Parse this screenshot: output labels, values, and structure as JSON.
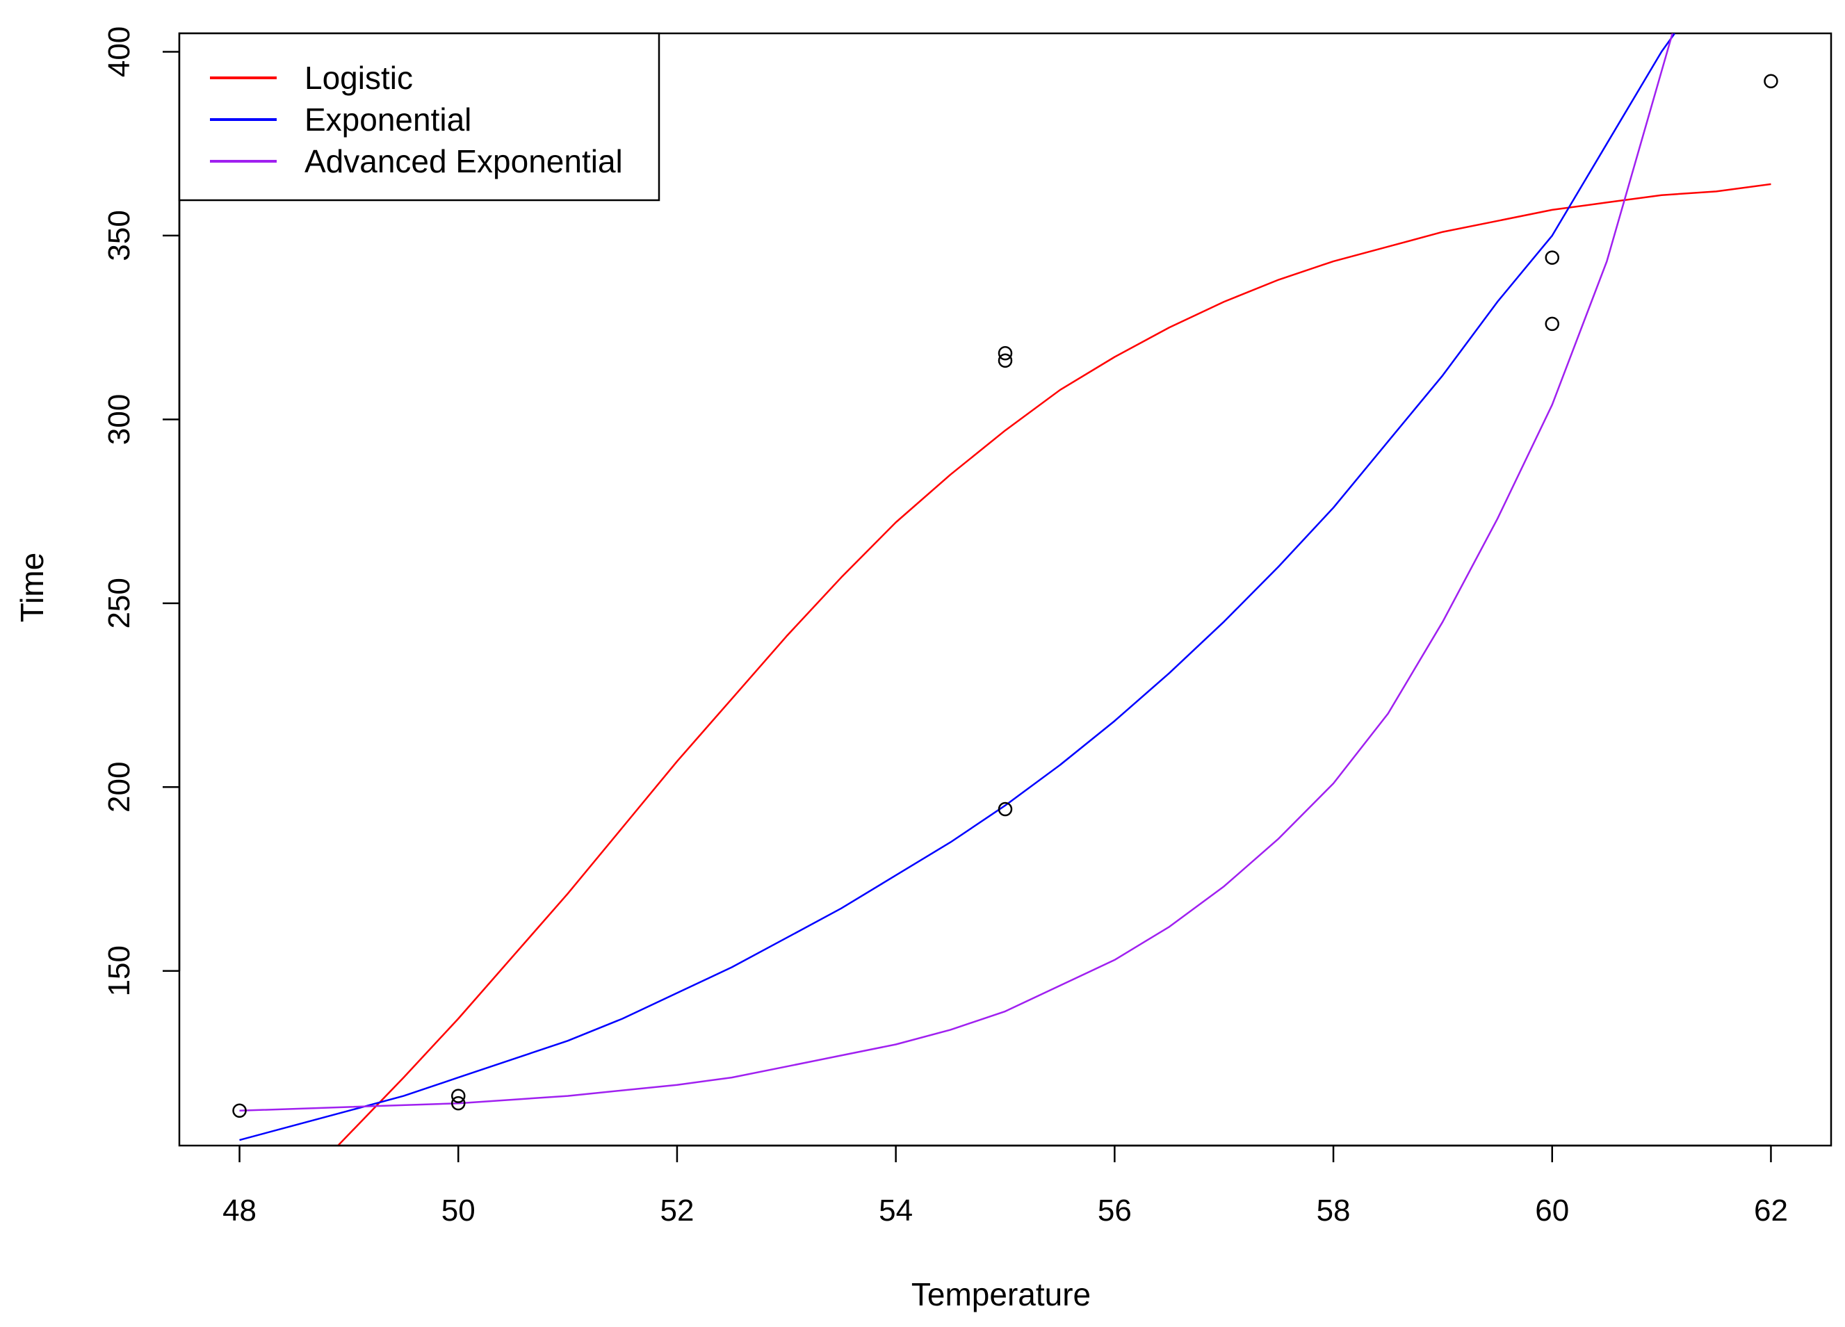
{
  "chart_data": {
    "type": "scatter",
    "title": "",
    "xlabel": "Temperature",
    "ylabel": "Time",
    "xlim": [
      47.45,
      62.55
    ],
    "ylim": [
      102.5,
      405
    ],
    "x_ticks": [
      48,
      50,
      52,
      54,
      56,
      58,
      60,
      62
    ],
    "y_ticks": [
      150,
      200,
      250,
      300,
      350,
      400
    ],
    "grid": false,
    "legend": {
      "placement": "top-left"
    },
    "points": [
      {
        "x": 48,
        "y": 112
      },
      {
        "x": 50,
        "y": 114
      },
      {
        "x": 50,
        "y": 116
      },
      {
        "x": 55,
        "y": 194
      },
      {
        "x": 55,
        "y": 316
      },
      {
        "x": 55,
        "y": 318
      },
      {
        "x": 60,
        "y": 326
      },
      {
        "x": 60,
        "y": 344
      },
      {
        "x": 62,
        "y": 392
      }
    ],
    "series": [
      {
        "name": "Logistic",
        "color": "#ff0000",
        "x": [
          48.9,
          49.5,
          50,
          50.5,
          51,
          51.5,
          52,
          52.5,
          53,
          53.5,
          54,
          54.5,
          55,
          55.5,
          56,
          56.5,
          57,
          57.5,
          58,
          58.5,
          59,
          59.5,
          60,
          60.5,
          61,
          61.5,
          62
        ],
        "y": [
          102.5,
          121,
          137,
          154,
          171,
          189,
          207,
          224,
          241,
          257,
          272,
          285,
          297,
          308,
          317,
          325,
          332,
          338,
          343,
          347,
          351,
          354,
          357,
          359,
          361,
          362,
          364
        ]
      },
      {
        "name": "Exponential",
        "color": "#0000ff",
        "x": [
          48,
          48.5,
          49,
          49.5,
          50,
          50.5,
          51,
          51.5,
          52,
          52.5,
          53,
          53.5,
          54,
          54.5,
          55,
          55.5,
          56,
          56.5,
          57,
          57.5,
          58,
          58.5,
          59,
          59.5,
          60,
          60.5,
          61,
          61.12
        ],
        "y": [
          104,
          108,
          112,
          116,
          121,
          126,
          131,
          137,
          144,
          151,
          159,
          167,
          176,
          185,
          195,
          206,
          218,
          231,
          245,
          260,
          276,
          294,
          312,
          332,
          350,
          375,
          400,
          405
        ]
      },
      {
        "name": "Advanced Exponential",
        "color": "#a020f0",
        "x": [
          48,
          49,
          50,
          51,
          52,
          52.5,
          53,
          53.5,
          54,
          54.5,
          55,
          55.5,
          56,
          56.5,
          57,
          57.5,
          58,
          58.5,
          59,
          59.5,
          60,
          60.5,
          60.8,
          61.1
        ],
        "y": [
          112,
          113,
          114,
          116,
          119,
          121,
          124,
          127,
          130,
          134,
          139,
          146,
          153,
          162,
          173,
          186,
          201,
          220,
          245,
          273,
          304,
          343,
          374,
          405
        ]
      }
    ]
  }
}
